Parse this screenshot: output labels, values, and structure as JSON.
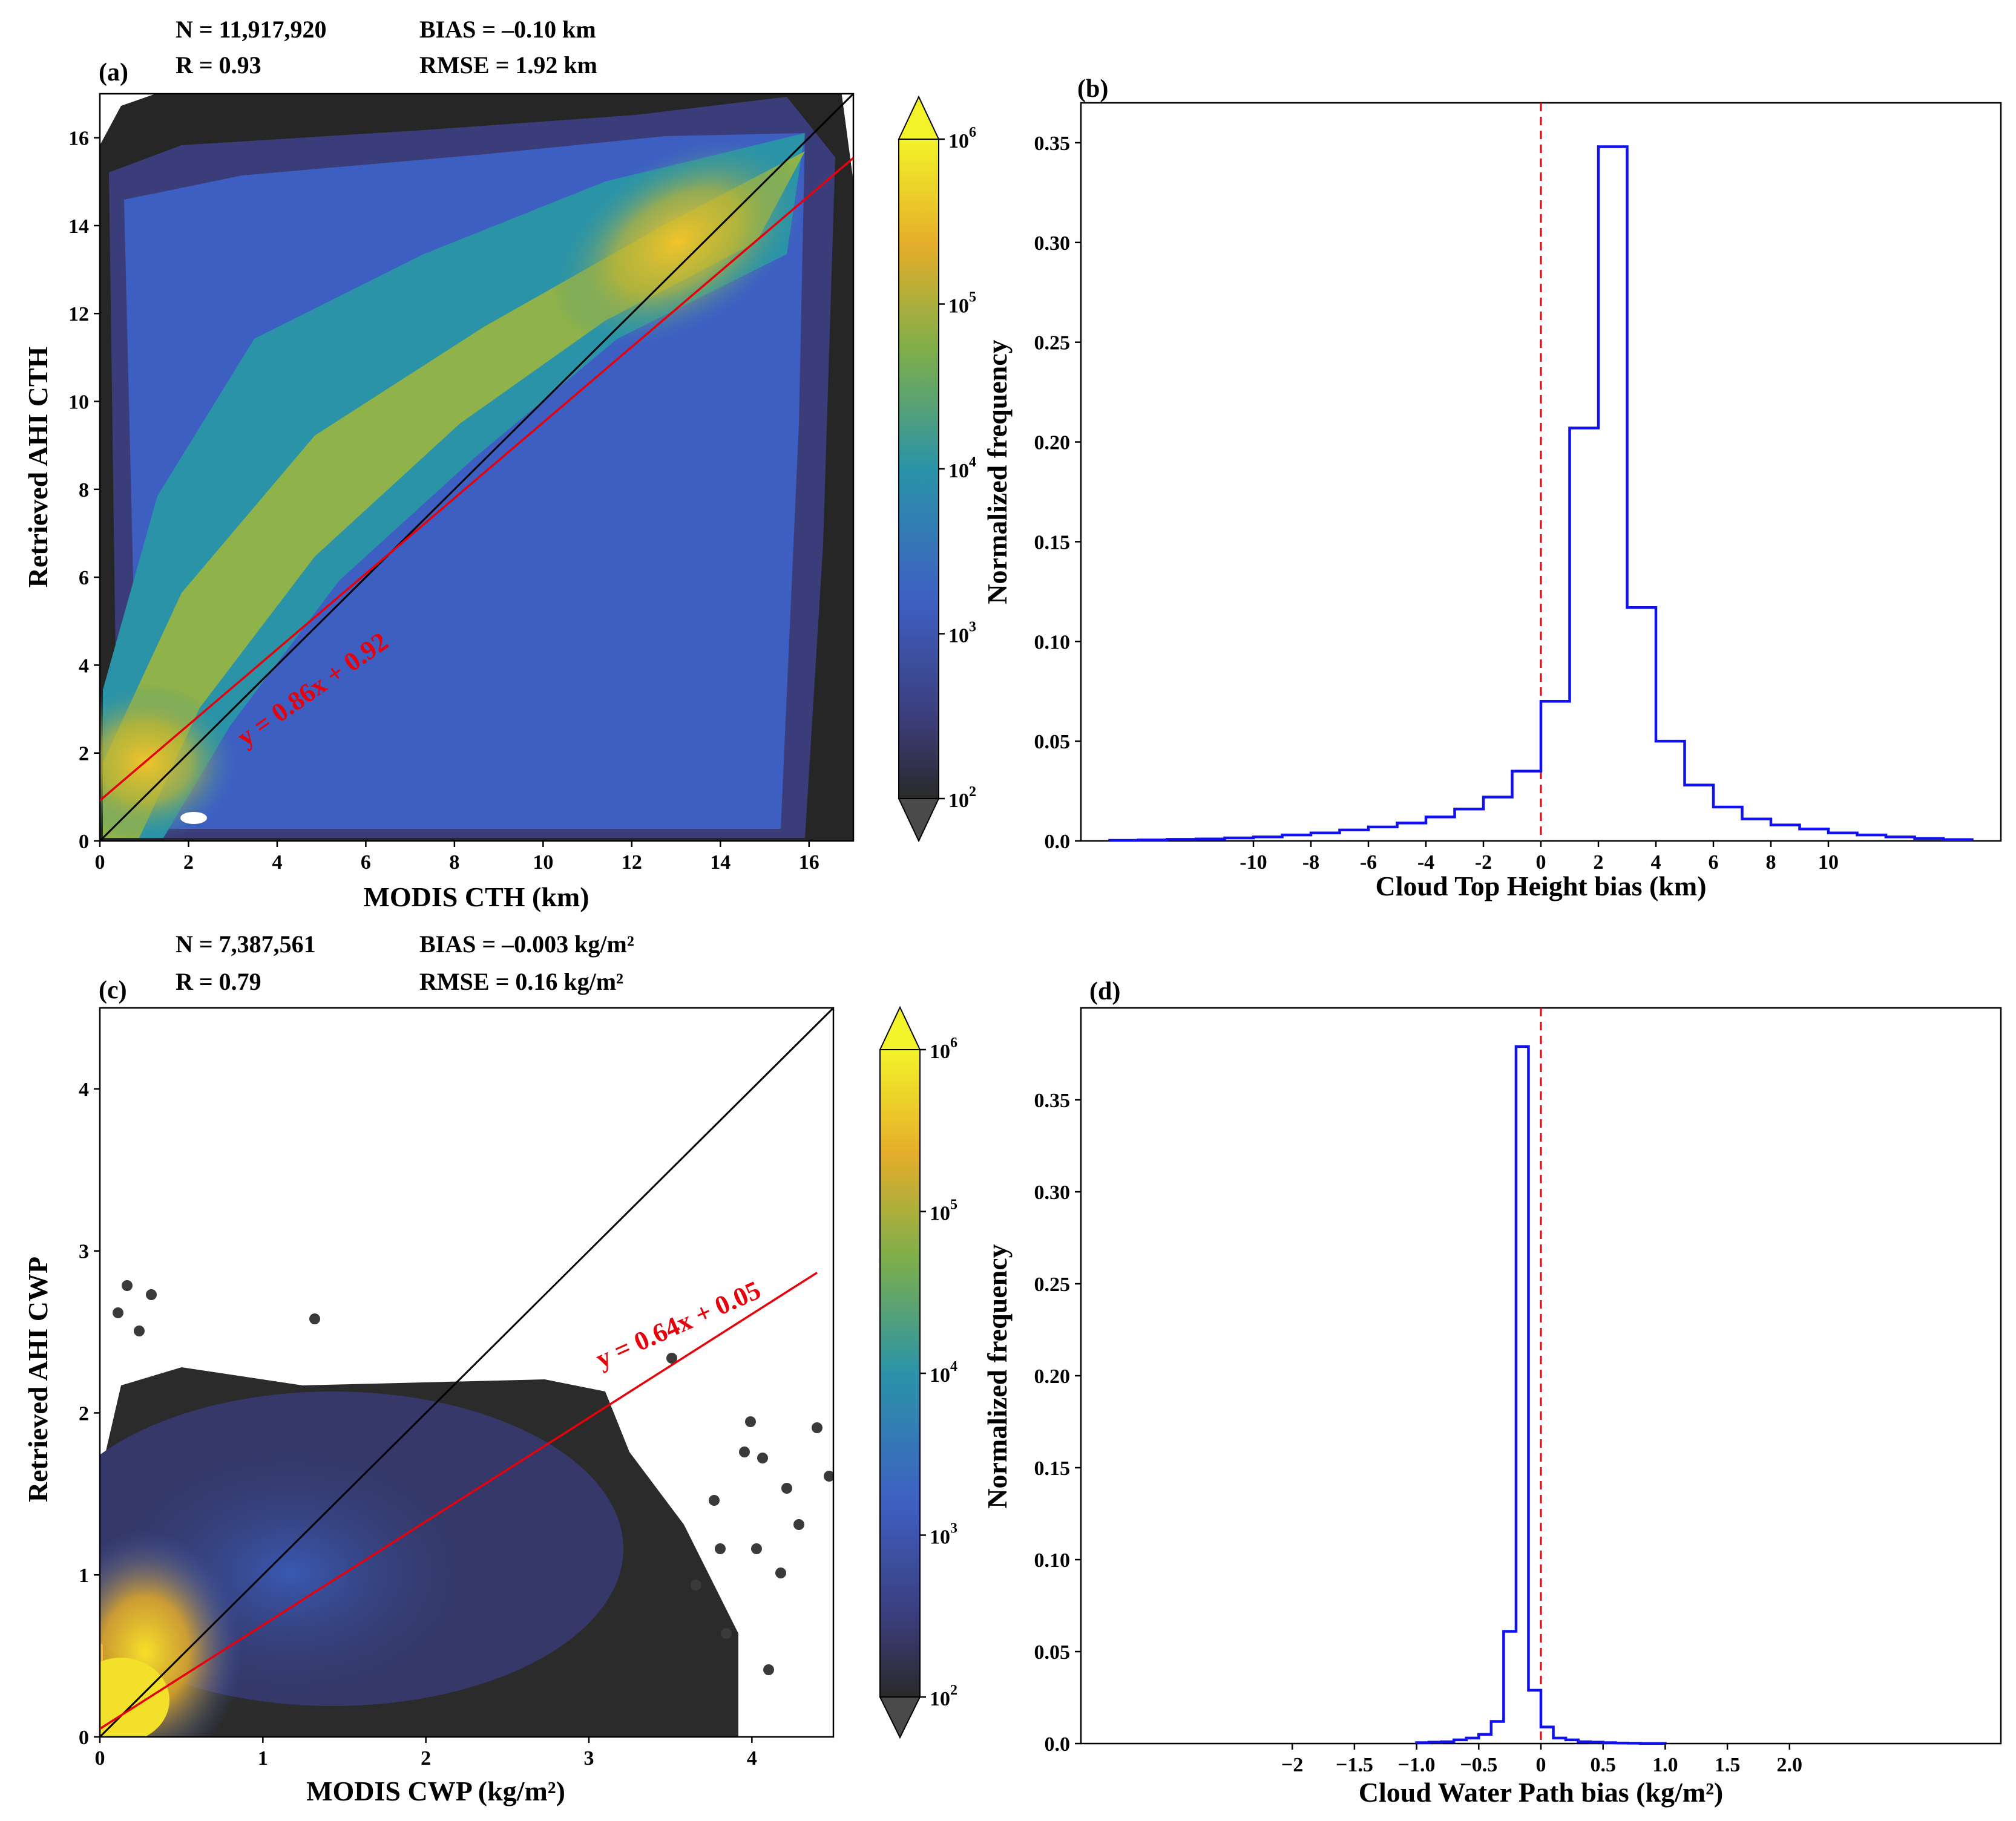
{
  "colors": {
    "hist_line": "#1010f0",
    "zero_line": "#e8000b",
    "fit_line": "#e8000b",
    "identity_line": "#000000",
    "scatter_outlier": "#2b2b2b"
  },
  "colorbar": {
    "ticks": [
      "10",
      "10",
      "10",
      "10",
      "10"
    ],
    "exponents": [
      "2",
      "3",
      "4",
      "5",
      "6"
    ]
  },
  "chart_data": [
    {
      "type": "scatter",
      "panel_label": "(a)",
      "xlabel": "MODIS CTH (km)",
      "ylabel": "Retrieved AHI CTH",
      "xlim": [
        0,
        17
      ],
      "ylim": [
        0,
        17
      ],
      "x_ticks": [
        0,
        2,
        4,
        6,
        8,
        10,
        12,
        14,
        16
      ],
      "y_ticks": [
        0,
        2,
        4,
        6,
        8,
        10,
        12,
        14,
        16
      ],
      "x_tick_labels": [
        "0",
        "2",
        "4",
        "6",
        "8",
        "10",
        "12",
        "14",
        "16"
      ],
      "y_tick_labels": [
        "0",
        "2",
        "4",
        "6",
        "8",
        "10",
        "12",
        "14",
        "16"
      ],
      "stats": {
        "n": "N = 11,917,920",
        "bias": "BIAS = –0.10 km",
        "r": "R = 0.93",
        "rmse": "RMSE = 1.92 km"
      },
      "fit_label": "y = 0.86x + 0.92",
      "fit": {
        "slope": 0.86,
        "intercept": 0.92
      },
      "colorbar_scale": "log",
      "colorbar_range": [
        100,
        1000000
      ]
    },
    {
      "type": "line",
      "panel_label": "(b)",
      "xlabel": "Cloud Top Height bias (km)",
      "ylabel": "Normalized frequency",
      "xlim": [
        -16,
        16
      ],
      "ylim": [
        0,
        0.37
      ],
      "x_ticks": [
        -10,
        -8,
        -6,
        -4,
        -2,
        0,
        2,
        4,
        6,
        8,
        10
      ],
      "x_tick_labels": [
        "-10",
        "-8",
        "-6",
        "-4",
        "-2",
        "0",
        "2",
        "4",
        "6",
        "8",
        "10"
      ],
      "y_ticks": [
        0.0,
        0.05,
        0.1,
        0.15,
        0.2,
        0.25,
        0.3,
        0.35
      ],
      "y_tick_labels": [
        "0.0",
        "0.05",
        "0.10",
        "0.15",
        "0.20",
        "0.25",
        "0.30",
        "0.35"
      ],
      "zero_reference_x": 0,
      "bin_edges": [
        -15,
        -14,
        -13,
        -12,
        -11,
        -10,
        -9,
        -8,
        -7,
        -6,
        -5,
        -4,
        -3,
        -2,
        -1,
        0,
        1,
        2,
        3,
        4,
        5,
        6,
        7,
        8,
        9,
        10,
        11,
        12,
        13,
        14,
        15
      ],
      "values": [
        0.0003,
        0.0005,
        0.0008,
        0.001,
        0.0015,
        0.002,
        0.003,
        0.004,
        0.0055,
        0.007,
        0.009,
        0.012,
        0.016,
        0.022,
        0.035,
        0.07,
        0.207,
        0.348,
        0.117,
        0.05,
        0.028,
        0.017,
        0.011,
        0.008,
        0.006,
        0.004,
        0.003,
        0.002,
        0.0012,
        0.0007,
        0.0004
      ]
    },
    {
      "type": "scatter",
      "panel_label": "(c)",
      "xlabel": "MODIS CWP (kg/m²)",
      "ylabel": "Retrieved AHI CWP",
      "xlim": [
        0,
        4.5
      ],
      "ylim": [
        0,
        4.5
      ],
      "x_ticks": [
        0,
        1,
        2,
        3,
        4
      ],
      "y_ticks": [
        0,
        1,
        2,
        3,
        4
      ],
      "x_tick_labels": [
        "0",
        "1",
        "2",
        "3",
        "4"
      ],
      "y_tick_labels": [
        "0",
        "1",
        "2",
        "3",
        "4"
      ],
      "stats": {
        "n": "N = 7,387,561",
        "bias": "BIAS = –0.003 kg/m²",
        "r": "R = 0.79",
        "rmse": "RMSE = 0.16 kg/m²"
      },
      "fit_label": "y = 0.64x + 0.05",
      "fit": {
        "slope": 0.64,
        "intercept": 0.05
      },
      "colorbar_scale": "log",
      "colorbar_range": [
        100,
        1000000
      ]
    },
    {
      "type": "line",
      "panel_label": "(d)",
      "xlabel": "Cloud Water Path bias (kg/m²)",
      "ylabel": "Normalized frequency",
      "xlim": [
        -3.7,
        3.7
      ],
      "ylim": [
        0,
        0.4
      ],
      "x_ticks": [
        -2,
        -1.5,
        -1.0,
        -0.5,
        0,
        0.5,
        1.0,
        1.5,
        2.0
      ],
      "x_tick_labels": [
        "−2",
        "−1.5",
        "−1.0",
        "−0.5",
        "0",
        "0.5",
        "1.0",
        "1.5",
        "2.0"
      ],
      "y_ticks": [
        0.0,
        0.05,
        0.1,
        0.15,
        0.2,
        0.25,
        0.3,
        0.35
      ],
      "y_tick_labels": [
        "0.0",
        "0.05",
        "0.10",
        "0.15",
        "0.20",
        "0.25",
        "0.30",
        "0.35"
      ],
      "zero_reference_x": 0,
      "bin_edges": [
        -1.0,
        -0.9,
        -0.8,
        -0.7,
        -0.6,
        -0.5,
        -0.4,
        -0.3,
        -0.2,
        -0.1,
        0.0,
        0.1,
        0.2,
        0.3,
        0.4,
        0.5,
        0.6,
        0.7,
        0.8,
        0.9,
        1.0
      ],
      "values": [
        0.0005,
        0.0008,
        0.001,
        0.002,
        0.003,
        0.005,
        0.012,
        0.061,
        0.379,
        0.029,
        0.009,
        0.003,
        0.002,
        0.001,
        0.0008,
        0.0005,
        0.0003,
        0.0002,
        0.0001,
        0.0001
      ]
    }
  ]
}
